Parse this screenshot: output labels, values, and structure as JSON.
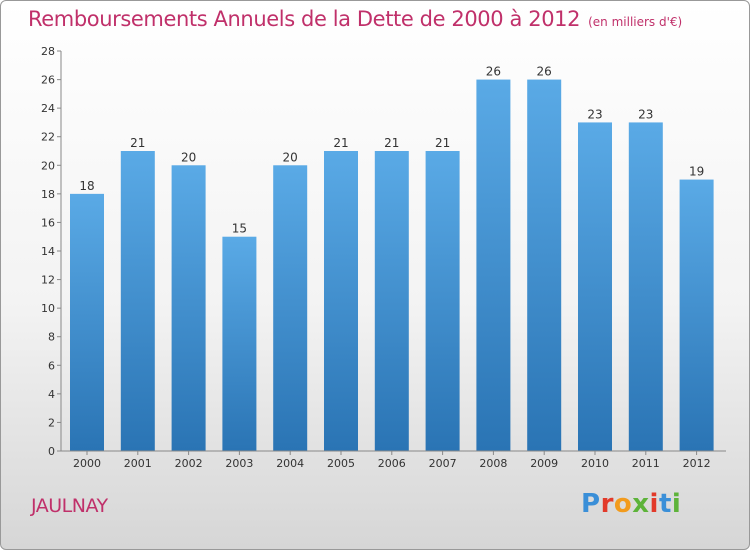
{
  "header": {
    "title": "Remboursements Annuels de la Dette de 2000 à 2012",
    "unit": "(en milliers d'€)"
  },
  "footer": {
    "commune": "JAULNAY",
    "logo_text": "Proxiti",
    "logo_colors": [
      "#3a8fd8",
      "#e23a2a",
      "#f29b1d",
      "#5db33a",
      "#e23a2a",
      "#3a8fd8",
      "#5db33a"
    ]
  },
  "colors": {
    "bar_light": "#5aaae6",
    "bar_dark": "#2a74b4",
    "axis_text": "#333333",
    "title": "#c0306a"
  },
  "chart_data": {
    "type": "bar",
    "categories": [
      "2000",
      "2001",
      "2002",
      "2003",
      "2004",
      "2005",
      "2006",
      "2007",
      "2008",
      "2009",
      "2010",
      "2011",
      "2012"
    ],
    "values": [
      18,
      21,
      20,
      15,
      20,
      21,
      21,
      21,
      26,
      26,
      23,
      23,
      19
    ],
    "yticks": [
      0,
      2,
      4,
      6,
      8,
      10,
      12,
      14,
      16,
      18,
      20,
      22,
      24,
      26,
      28
    ],
    "ylim": [
      0,
      28
    ],
    "grid": false,
    "legend": "none"
  }
}
